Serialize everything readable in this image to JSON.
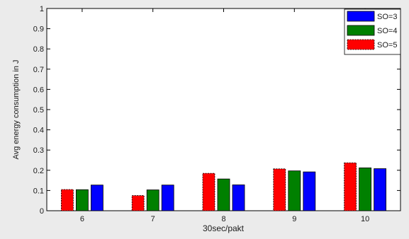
{
  "chart_data": {
    "type": "bar",
    "title": "",
    "xlabel": "30sec/pakt",
    "ylabel": "Avg energy consumption in J",
    "categories": [
      "6",
      "7",
      "8",
      "9",
      "10"
    ],
    "ylim": [
      0,
      1
    ],
    "yticks": [
      "0",
      "0.1",
      "0.2",
      "0.3",
      "0.4",
      "0.5",
      "0.6",
      "0.7",
      "0.8",
      "0.9",
      "1"
    ],
    "legend_position": "top-right",
    "grid": false,
    "series": [
      {
        "name": "SO=5",
        "color": "#ff0000",
        "values": [
          0.105,
          0.075,
          0.185,
          0.207,
          0.237
        ]
      },
      {
        "name": "SO=4",
        "color": "#008000",
        "values": [
          0.104,
          0.103,
          0.157,
          0.197,
          0.212
        ]
      },
      {
        "name": "SO=3",
        "color": "#0000ff",
        "values": [
          0.127,
          0.127,
          0.128,
          0.192,
          0.208
        ]
      }
    ],
    "legend_entries": [
      {
        "label": "SO=3",
        "color": "#0000ff"
      },
      {
        "label": "SO=4",
        "color": "#008000"
      },
      {
        "label": "SO=5",
        "color": "#ff0000"
      }
    ]
  }
}
